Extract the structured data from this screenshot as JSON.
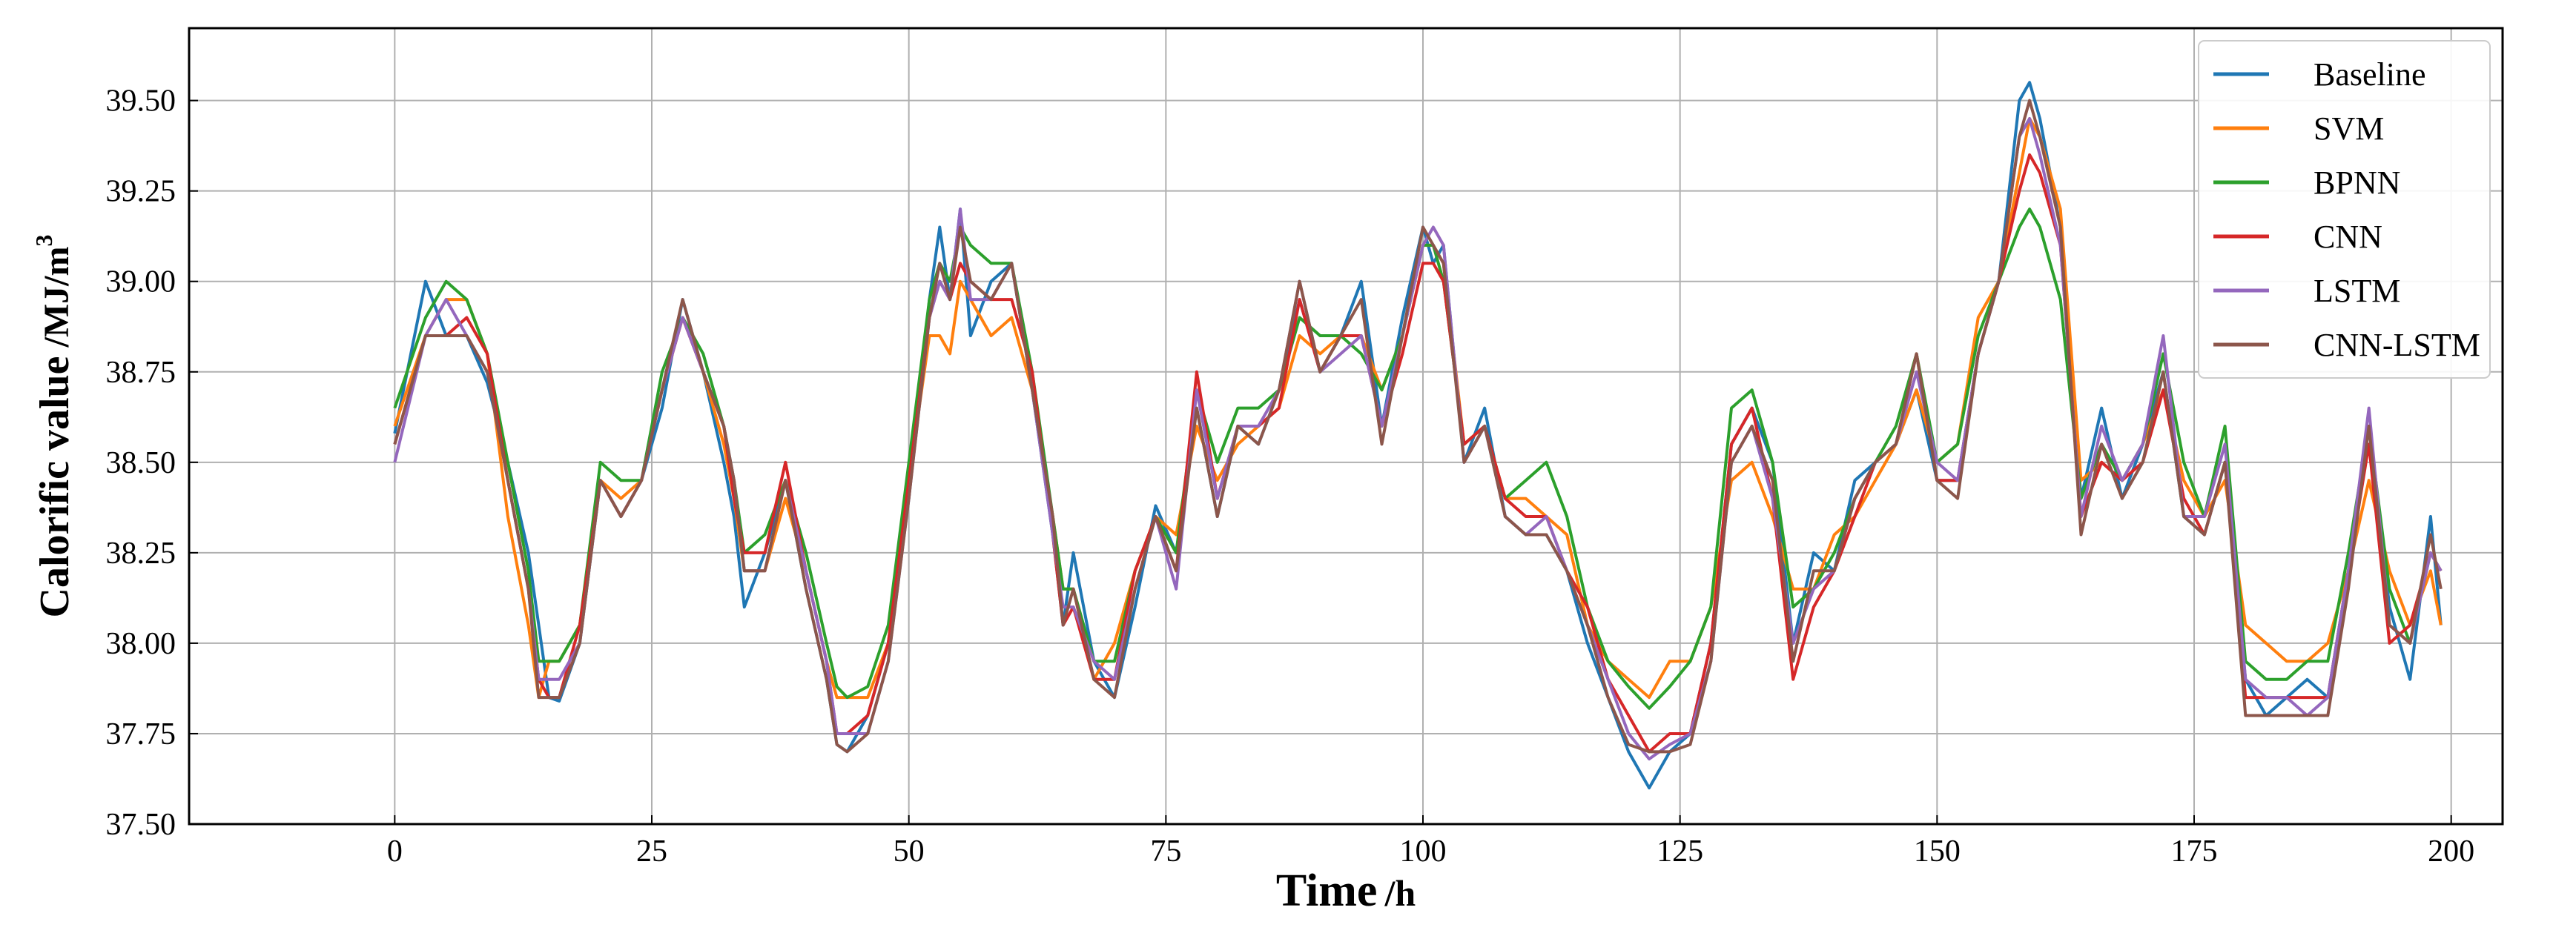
{
  "chart_data": {
    "type": "line",
    "xlabel": "Time",
    "xlabel_unit": "/h",
    "ylabel": "Calorific value",
    "ylabel_unit": "/MJ/m",
    "ylabel_unit_sup": "3",
    "xlim": [
      -20,
      205
    ],
    "ylim": [
      37.5,
      39.7
    ],
    "xticks": [
      0,
      25,
      50,
      75,
      100,
      125,
      150,
      175,
      200
    ],
    "xtick_labels": [
      "0",
      "25",
      "50",
      "75",
      "100",
      "125",
      "150",
      "175",
      "200"
    ],
    "yticks": [
      37.5,
      37.75,
      38.0,
      38.25,
      38.5,
      38.75,
      39.0,
      39.25,
      39.5
    ],
    "ytick_labels": [
      "37.50",
      "37.75",
      "38.00",
      "38.25",
      "38.50",
      "38.75",
      "39.00",
      "39.25",
      "39.50"
    ],
    "grid": true,
    "legend_position": "top-right",
    "anchors_x": [
      0,
      3,
      5,
      7,
      9,
      11,
      13,
      14,
      15,
      16,
      18,
      20,
      22,
      24,
      26,
      28,
      30,
      32,
      33,
      34,
      36,
      38,
      40,
      42,
      43,
      44,
      46,
      48,
      50,
      52,
      53,
      54,
      55,
      56,
      58,
      60,
      62,
      64,
      65,
      66,
      68,
      70,
      72,
      74,
      76,
      78,
      80,
      82,
      84,
      86,
      88,
      90,
      92,
      94,
      96,
      98,
      100,
      101,
      102,
      104,
      106,
      108,
      110,
      112,
      114,
      116,
      118,
      120,
      122,
      124,
      126,
      128,
      130,
      132,
      134,
      136,
      138,
      140,
      142,
      144,
      146,
      148,
      150,
      152,
      154,
      156,
      158,
      159,
      160,
      162,
      164,
      166,
      168,
      170,
      172,
      174,
      176,
      178,
      180,
      182,
      184,
      186,
      188,
      190,
      192,
      194,
      196,
      198,
      199
    ],
    "series": [
      {
        "name": "Baseline",
        "color": "#1f77b4",
        "anchors_y": [
          38.58,
          39.0,
          38.85,
          38.85,
          38.72,
          38.5,
          38.25,
          38.05,
          37.85,
          37.84,
          38.0,
          38.45,
          38.35,
          38.45,
          38.65,
          38.95,
          38.75,
          38.5,
          38.35,
          38.1,
          38.25,
          38.45,
          38.15,
          37.9,
          37.72,
          37.7,
          37.8,
          38.0,
          38.4,
          38.95,
          39.15,
          38.95,
          39.2,
          38.85,
          39.0,
          39.05,
          38.7,
          38.3,
          38.05,
          38.25,
          37.95,
          37.85,
          38.1,
          38.38,
          38.25,
          38.65,
          38.35,
          38.6,
          38.55,
          38.7,
          38.95,
          38.75,
          38.85,
          39.0,
          38.6,
          38.9,
          39.15,
          39.05,
          39.1,
          38.5,
          38.65,
          38.35,
          38.3,
          38.3,
          38.2,
          38.0,
          37.85,
          37.7,
          37.6,
          37.7,
          37.75,
          38.0,
          38.55,
          38.65,
          38.5,
          38.0,
          38.25,
          38.2,
          38.45,
          38.5,
          38.55,
          38.7,
          38.45,
          38.45,
          38.8,
          39.0,
          39.5,
          39.55,
          39.45,
          39.15,
          38.4,
          38.65,
          38.4,
          38.55,
          38.75,
          38.35,
          38.3,
          38.5,
          37.9,
          37.8,
          37.85,
          37.9,
          37.85,
          38.2,
          38.6,
          38.1,
          37.9,
          38.35,
          38.05
        ]
      },
      {
        "name": "SVM",
        "color": "#ff7f0e",
        "anchors_y": [
          38.6,
          38.85,
          38.95,
          38.95,
          38.8,
          38.35,
          38.05,
          37.85,
          37.95,
          37.95,
          38.05,
          38.45,
          38.4,
          38.45,
          38.7,
          38.9,
          38.75,
          38.55,
          38.4,
          38.2,
          38.2,
          38.4,
          38.2,
          37.95,
          37.85,
          37.85,
          37.85,
          38.0,
          38.45,
          38.85,
          38.85,
          38.8,
          39.0,
          38.95,
          38.85,
          38.9,
          38.7,
          38.35,
          38.15,
          38.15,
          37.9,
          38.0,
          38.2,
          38.35,
          38.3,
          38.6,
          38.45,
          38.55,
          38.6,
          38.65,
          38.85,
          38.8,
          38.85,
          38.85,
          38.7,
          38.85,
          39.1,
          39.1,
          39.05,
          38.55,
          38.6,
          38.4,
          38.4,
          38.35,
          38.3,
          38.05,
          37.95,
          37.9,
          37.85,
          37.95,
          37.95,
          38.1,
          38.45,
          38.5,
          38.35,
          38.15,
          38.15,
          38.3,
          38.35,
          38.45,
          38.55,
          38.7,
          38.5,
          38.55,
          38.9,
          39.0,
          39.3,
          39.45,
          39.4,
          39.2,
          38.45,
          38.5,
          38.45,
          38.55,
          38.7,
          38.45,
          38.35,
          38.45,
          38.05,
          38.0,
          37.95,
          37.95,
          38.0,
          38.2,
          38.45,
          38.2,
          38.05,
          38.2,
          38.05
        ]
      },
      {
        "name": "BPNN",
        "color": "#2ca02c",
        "anchors_y": [
          38.65,
          38.9,
          39.0,
          38.95,
          38.8,
          38.5,
          38.2,
          37.95,
          37.95,
          37.95,
          38.05,
          38.5,
          38.45,
          38.45,
          38.75,
          38.9,
          38.8,
          38.6,
          38.45,
          38.25,
          38.3,
          38.45,
          38.25,
          38.0,
          37.88,
          37.85,
          37.88,
          38.05,
          38.5,
          38.95,
          39.05,
          39.0,
          39.15,
          39.1,
          39.05,
          39.05,
          38.75,
          38.35,
          38.15,
          38.15,
          37.95,
          37.95,
          38.2,
          38.35,
          38.25,
          38.7,
          38.5,
          38.65,
          38.65,
          38.7,
          38.9,
          38.85,
          38.85,
          38.8,
          38.7,
          38.85,
          39.1,
          39.1,
          39.0,
          38.55,
          38.6,
          38.4,
          38.45,
          38.5,
          38.35,
          38.1,
          37.95,
          37.88,
          37.82,
          37.88,
          37.95,
          38.1,
          38.65,
          38.7,
          38.5,
          38.1,
          38.15,
          38.25,
          38.4,
          38.5,
          38.6,
          38.8,
          38.5,
          38.55,
          38.85,
          39.0,
          39.15,
          39.2,
          39.15,
          38.95,
          38.4,
          38.55,
          38.45,
          38.55,
          38.8,
          38.5,
          38.35,
          38.6,
          37.95,
          37.9,
          37.9,
          37.95,
          37.95,
          38.25,
          38.6,
          38.15,
          38.0,
          38.25,
          38.2
        ]
      },
      {
        "name": "CNN",
        "color": "#d62728",
        "anchors_y": [
          38.55,
          38.85,
          38.85,
          38.9,
          38.8,
          38.45,
          38.15,
          37.9,
          37.85,
          37.85,
          38.05,
          38.45,
          38.35,
          38.45,
          38.7,
          38.9,
          38.75,
          38.6,
          38.4,
          38.25,
          38.25,
          38.5,
          38.2,
          37.95,
          37.75,
          37.75,
          37.8,
          38.0,
          38.45,
          38.9,
          39.0,
          38.95,
          39.05,
          39.0,
          38.95,
          38.95,
          38.75,
          38.3,
          38.05,
          38.1,
          37.9,
          37.9,
          38.2,
          38.35,
          38.2,
          38.75,
          38.4,
          38.6,
          38.6,
          38.65,
          38.95,
          38.75,
          38.85,
          38.85,
          38.6,
          38.8,
          39.05,
          39.05,
          39.0,
          38.55,
          38.6,
          38.4,
          38.35,
          38.35,
          38.2,
          38.1,
          37.9,
          37.8,
          37.7,
          37.75,
          37.75,
          38.0,
          38.55,
          38.65,
          38.4,
          37.9,
          38.1,
          38.2,
          38.35,
          38.5,
          38.55,
          38.8,
          38.45,
          38.45,
          38.8,
          39.0,
          39.25,
          39.35,
          39.3,
          39.1,
          38.35,
          38.5,
          38.45,
          38.5,
          38.7,
          38.4,
          38.3,
          38.5,
          37.85,
          37.85,
          37.85,
          37.85,
          37.85,
          38.2,
          38.55,
          38.0,
          38.05,
          38.25,
          38.2
        ]
      },
      {
        "name": "LSTM",
        "color": "#9467bd",
        "anchors_y": [
          38.5,
          38.85,
          38.95,
          38.85,
          38.75,
          38.45,
          38.15,
          37.9,
          37.9,
          37.9,
          38.0,
          38.45,
          38.35,
          38.45,
          38.7,
          38.9,
          38.75,
          38.6,
          38.45,
          38.2,
          38.2,
          38.45,
          38.2,
          37.95,
          37.75,
          37.75,
          37.75,
          37.95,
          38.4,
          38.9,
          39.0,
          38.95,
          39.2,
          38.95,
          38.95,
          39.05,
          38.7,
          38.3,
          38.1,
          38.1,
          37.95,
          37.9,
          38.15,
          38.35,
          38.15,
          38.7,
          38.4,
          38.6,
          38.6,
          38.7,
          39.0,
          38.75,
          38.8,
          38.85,
          38.6,
          38.85,
          39.1,
          39.15,
          39.1,
          38.5,
          38.6,
          38.35,
          38.3,
          38.35,
          38.2,
          38.05,
          37.9,
          37.75,
          37.68,
          37.72,
          37.75,
          37.95,
          38.5,
          38.6,
          38.4,
          38.0,
          38.15,
          38.2,
          38.4,
          38.5,
          38.55,
          38.75,
          38.5,
          38.45,
          38.8,
          39.0,
          39.4,
          39.45,
          39.35,
          39.1,
          38.35,
          38.6,
          38.45,
          38.55,
          38.85,
          38.35,
          38.35,
          38.55,
          37.9,
          37.85,
          37.85,
          37.8,
          37.85,
          38.2,
          38.65,
          38.05,
          38.0,
          38.25,
          38.2
        ]
      },
      {
        "name": "CNN-LSTM",
        "color": "#8c564b",
        "anchors_y": [
          38.55,
          38.85,
          38.85,
          38.85,
          38.75,
          38.45,
          38.15,
          37.85,
          37.85,
          37.85,
          38.0,
          38.45,
          38.35,
          38.45,
          38.7,
          38.95,
          38.75,
          38.6,
          38.45,
          38.2,
          38.2,
          38.45,
          38.15,
          37.9,
          37.72,
          37.7,
          37.75,
          37.95,
          38.4,
          38.9,
          39.05,
          38.95,
          39.15,
          39.0,
          38.95,
          39.05,
          38.7,
          38.35,
          38.05,
          38.15,
          37.9,
          37.85,
          38.15,
          38.35,
          38.2,
          38.65,
          38.35,
          38.6,
          38.55,
          38.7,
          39.0,
          38.75,
          38.85,
          38.95,
          38.55,
          38.85,
          39.15,
          39.1,
          39.05,
          38.5,
          38.6,
          38.35,
          38.3,
          38.3,
          38.2,
          38.05,
          37.85,
          37.72,
          37.7,
          37.7,
          37.72,
          37.95,
          38.5,
          38.6,
          38.45,
          37.95,
          38.2,
          38.2,
          38.4,
          38.5,
          38.55,
          38.8,
          38.45,
          38.4,
          38.8,
          39.0,
          39.4,
          39.5,
          39.4,
          39.15,
          38.3,
          38.55,
          38.4,
          38.5,
          38.75,
          38.35,
          38.3,
          38.5,
          37.8,
          37.8,
          37.8,
          37.8,
          37.8,
          38.15,
          38.6,
          38.05,
          38.0,
          38.3,
          38.15
        ]
      }
    ]
  }
}
